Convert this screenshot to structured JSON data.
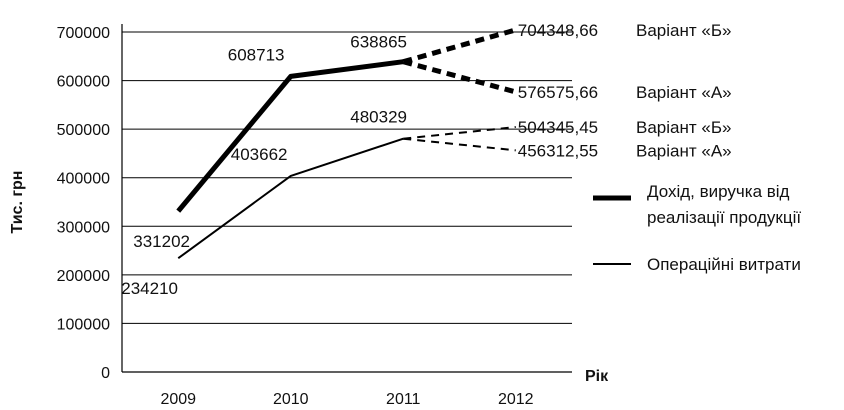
{
  "chart_data": {
    "type": "line",
    "ylabel": "Тис. грн",
    "xlabel": "Рік",
    "ylim": [
      0,
      700000
    ],
    "yticks": [
      "0",
      "100000",
      "200000",
      "300000",
      "400000",
      "500000",
      "600000",
      "700000"
    ],
    "categories": [
      "2009",
      "2010",
      "2011",
      "2012"
    ],
    "grid": true,
    "legend_position": "right",
    "series": [
      {
        "name": "Дохід, виручка від реалізації продукції",
        "style": "thick",
        "color": "#000000",
        "actual": [
          {
            "x": "2009",
            "y": 331202,
            "label": "331202"
          },
          {
            "x": "2010",
            "y": 608713,
            "label": "608713"
          },
          {
            "x": "2011",
            "y": 638865,
            "label": "638865"
          }
        ],
        "forecasts": [
          {
            "variant": "Варіант «Б»",
            "x": "2012",
            "y": 704348.66,
            "label": "704348,66"
          },
          {
            "variant": "Варіант «А»",
            "x": "2012",
            "y": 576575.66,
            "label": "576575,66"
          }
        ]
      },
      {
        "name": "Операційні витрати",
        "style": "thin",
        "color": "#000000",
        "actual": [
          {
            "x": "2009",
            "y": 234210,
            "label": "234210"
          },
          {
            "x": "2010",
            "y": 403662,
            "label": "403662"
          },
          {
            "x": "2011",
            "y": 480329,
            "label": "480329"
          }
        ],
        "forecasts": [
          {
            "variant": "Варіант «Б»",
            "x": "2012",
            "y": 504345.45,
            "label": "504345,45"
          },
          {
            "variant": "Варіант «А»",
            "x": "2012",
            "y": 456312.55,
            "label": "456312,55"
          }
        ]
      }
    ],
    "legend": [
      {
        "lines": [
          "Дохід, виручка від",
          "реалізації продукції"
        ],
        "style": "thick"
      },
      {
        "lines": [
          "Операційні витрати"
        ],
        "style": "thin"
      }
    ]
  }
}
